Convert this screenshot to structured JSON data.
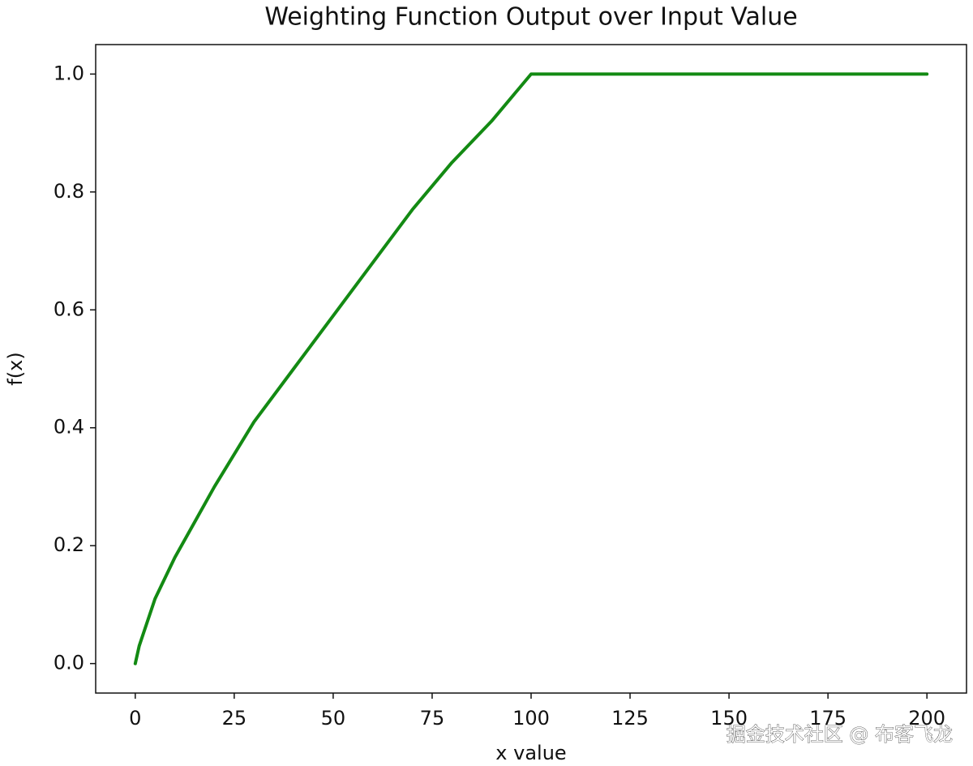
{
  "chart_data": {
    "type": "line",
    "title": "Weighting Function Output over Input Value",
    "xlabel": "x value",
    "ylabel": "f(x)",
    "x": [
      0,
      1,
      2,
      5,
      10,
      15,
      20,
      30,
      40,
      50,
      60,
      70,
      80,
      90,
      100,
      150,
      200
    ],
    "series": [
      {
        "name": "f(x)",
        "color": "#138a13",
        "values": [
          0,
          0.03,
          0.05,
          0.11,
          0.18,
          0.24,
          0.3,
          0.41,
          0.5,
          0.59,
          0.68,
          0.77,
          0.85,
          0.92,
          1,
          1,
          1
        ]
      }
    ],
    "xlim": [
      -10,
      210
    ],
    "xticks": [
      0,
      25,
      50,
      75,
      100,
      125,
      150,
      175,
      200
    ],
    "ylim": [
      -0.05,
      1.05
    ],
    "yticks": [
      {
        "value": 0,
        "label": "0.0"
      },
      0.2,
      0.4,
      0.6,
      0.8,
      {
        "value": 1,
        "label": "1.0"
      }
    ],
    "grid": false,
    "watermark": "掘金技术社区 @ 布客飞龙"
  }
}
